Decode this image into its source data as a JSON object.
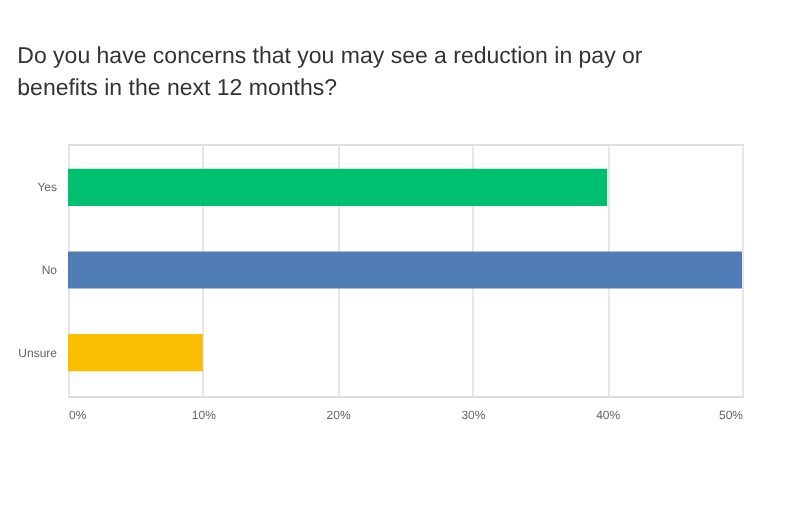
{
  "chart_data": {
    "type": "bar",
    "orientation": "horizontal",
    "title": "Do you have concerns that you may see a reduction in pay or benefits in the next 12 months?",
    "categories": [
      "Yes",
      "No",
      "Unsure"
    ],
    "values": [
      40,
      50,
      10
    ],
    "colors": [
      "#00bf6f",
      "#507cb6",
      "#f9be00"
    ],
    "xlim": [
      0,
      50
    ],
    "xticks": [
      {
        "value": 0,
        "label": "0%"
      },
      {
        "value": 10,
        "label": "10%"
      },
      {
        "value": 20,
        "label": "20%"
      },
      {
        "value": 30,
        "label": "30%"
      },
      {
        "value": 40,
        "label": "40%"
      },
      {
        "value": 50,
        "label": "50%"
      }
    ],
    "grid": "x"
  }
}
